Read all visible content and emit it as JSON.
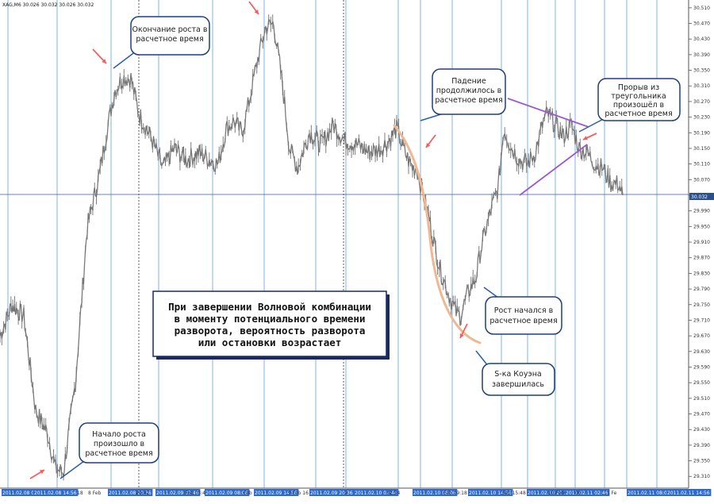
{
  "chart_data": {
    "type": "line",
    "title": "XAG,M6 30.026 30.032 30.026 30.032",
    "last_price": "30.032",
    "ylim": [
      29.28,
      30.53
    ],
    "y_ticks": [
      "30.510",
      "30.470",
      "30.430",
      "30.390",
      "30.350",
      "30.310",
      "30.270",
      "30.230",
      "30.190",
      "30.150",
      "30.110",
      "30.070",
      "30.030",
      "29.990",
      "29.950",
      "29.910",
      "29.870",
      "29.830",
      "29.790",
      "29.750",
      "29.710",
      "29.670",
      "29.630",
      "29.590",
      "29.550",
      "29.510",
      "29.470",
      "29.430",
      "29.390",
      "29.350",
      "29.310"
    ],
    "x_ticks": [
      "2011.02.08 08:06",
      "2011.02.08 14:56",
      "18",
      "8 Feb",
      "2011.02.08 20:36",
      "20:42",
      "2011.02.09 02:46",
      "Feb 03:48",
      "2011.02.09 08:06",
      "Feb 10:",
      "2011.02.09 14:56",
      "9 Feb 16",
      "2011.02.09 20:36",
      "9",
      "2011.02.10 02:46",
      "02:54",
      "2011.02.10 08:06",
      "Feb 09:18",
      "2011.02.10 14:56",
      "Feb 15:48",
      "2011.02.10 20:36",
      "10 Feb",
      "2011.02.11 02:46",
      "00",
      "11 Fe",
      "2011.02.11 08:06",
      "2011.02.11 14:56"
    ],
    "x": [
      0,
      15,
      30,
      45,
      60,
      70,
      80,
      95,
      110,
      125,
      135,
      145,
      155,
      165,
      175,
      190,
      205,
      220,
      235,
      250,
      265,
      275,
      285,
      295,
      305,
      315,
      325,
      335,
      345,
      355,
      365,
      375,
      390,
      405,
      420,
      435,
      450,
      465,
      480,
      490,
      500,
      510,
      520,
      525,
      530,
      540,
      548,
      555,
      565,
      575,
      580,
      590,
      600,
      605,
      612,
      620,
      628,
      635,
      645,
      655,
      665,
      675,
      685,
      690,
      700,
      710,
      720,
      730,
      740,
      750,
      760,
      770,
      780,
      785
    ],
    "series": [
      {
        "values": [
          29.67,
          29.75,
          29.72,
          29.48,
          29.42,
          29.33,
          29.32,
          29.55,
          29.95,
          30.08,
          30.2,
          30.3,
          30.33,
          30.33,
          30.24,
          30.18,
          30.1,
          30.15,
          30.12,
          30.14,
          30.12,
          30.11,
          30.2,
          30.22,
          30.19,
          30.28,
          30.38,
          30.46,
          30.47,
          30.33,
          30.15,
          30.1,
          30.19,
          30.16,
          30.21,
          30.17,
          30.16,
          30.14,
          30.15,
          30.17,
          30.2,
          30.14,
          30.1,
          30.1,
          30.06,
          29.98,
          29.9,
          29.84,
          29.78,
          29.73,
          29.72,
          29.78,
          29.82,
          29.88,
          29.94,
          30.0,
          30.05,
          30.2,
          30.15,
          30.12,
          30.11,
          30.14,
          30.22,
          30.24,
          30.21,
          30.18,
          30.21,
          30.15,
          30.14,
          30.11,
          30.1,
          30.06,
          30.06,
          30.03
        ]
      }
    ],
    "annotations": [
      "Окончание роста в расчетное время",
      "Падение продолжилось в расчетное время",
      "Прорыв из треугольника произошёл в расчетное время",
      "Рост начался в расчетное время",
      "S-ка Коуэна завершилась",
      "Начало роста произошло в расчетное время"
    ],
    "main_note": [
      "При завершении Волновой комбинации",
      "в моменту потенциального времени",
      "разворота, вероятность разворота",
      "или остановки возрастает"
    ]
  }
}
